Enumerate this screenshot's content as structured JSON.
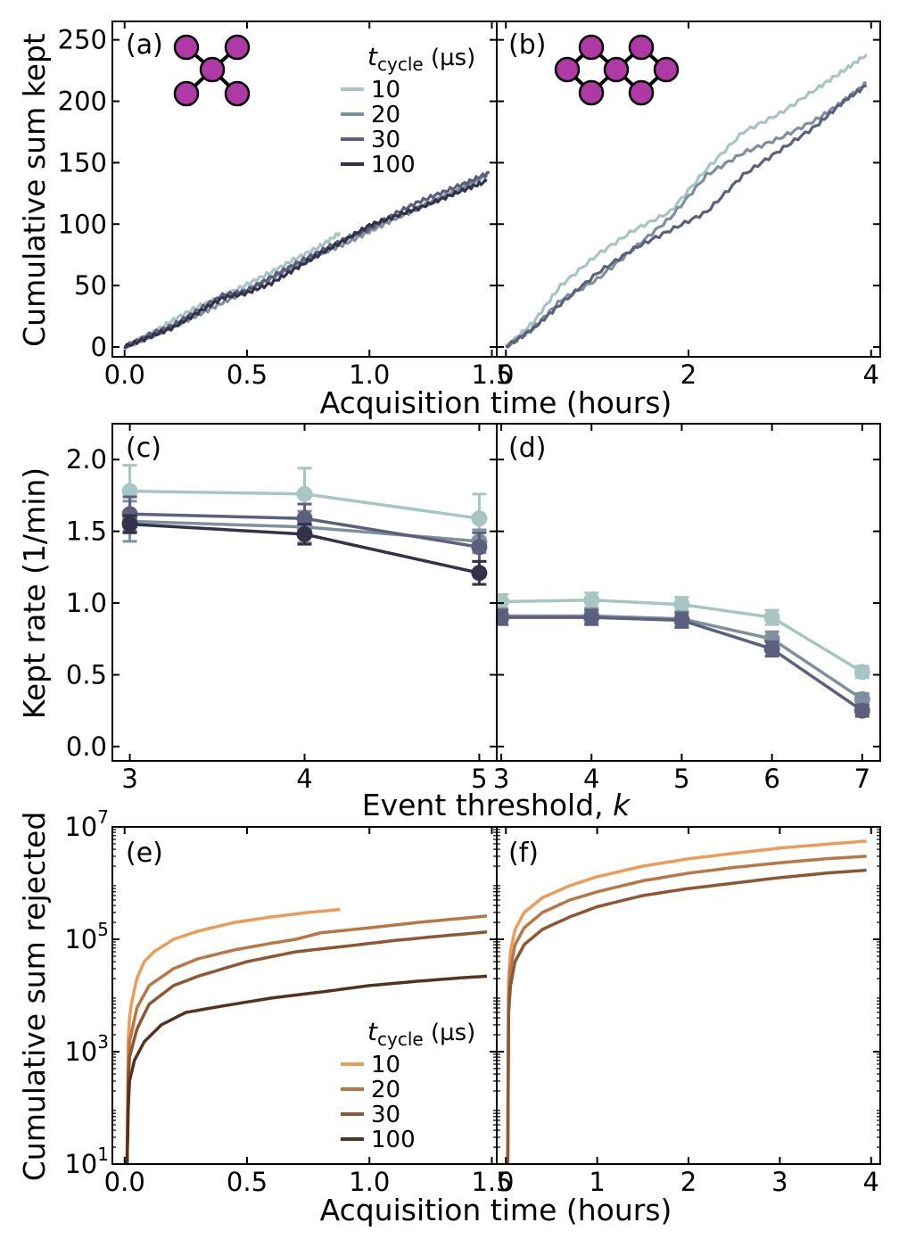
{
  "colors": {
    "kept": [
      "#a7c5c3",
      "#7e8f9d",
      "#5c5f7e",
      "#33324a"
    ],
    "rejected": [
      "#ec9b5a",
      "#b97647",
      "#8e5633",
      "#55321f"
    ],
    "qubit": "#b03aa5"
  },
  "axis_labels": {
    "row1_x": "Acquisition time (hours)",
    "row2_x": "Event threshold, k",
    "row3_x": "Acquisition time (hours)",
    "row1_y": "Cumulative sum kept",
    "row2_y": "Kept rate (1/min)",
    "row3_y": "Cumulative sum rejected"
  },
  "legend": {
    "title_main": "t",
    "title_sub": "cycle",
    "title_unit": "(µs)",
    "entries": [
      "10",
      "20",
      "30",
      "100"
    ]
  },
  "chart_data": [
    {
      "panel": "a",
      "type": "line",
      "label": "(a)",
      "xlabel": "Acquisition time (hours)",
      "ylabel": "Cumulative sum kept",
      "xlim": [
        -0.05,
        1.52
      ],
      "ylim": [
        -8,
        265
      ],
      "xticks": [
        0.0,
        0.5,
        1.0,
        1.5
      ],
      "xticklabels": [
        "0.0",
        "0.5",
        "1.0",
        "1.5"
      ],
      "yticks": [
        0,
        50,
        100,
        150,
        200,
        250
      ],
      "yticklabels": [
        "0",
        "50",
        "100",
        "150",
        "200",
        "250"
      ],
      "series": [
        {
          "name": "10",
          "x": [
            0,
            0.1,
            0.2,
            0.3,
            0.4,
            0.5,
            0.6,
            0.7,
            0.8,
            0.88
          ],
          "y": [
            0,
            10,
            22,
            33,
            41,
            51,
            61,
            72,
            82,
            93
          ]
        },
        {
          "name": "20",
          "x": [
            0,
            0.1,
            0.2,
            0.3,
            0.4,
            0.5,
            0.6,
            0.7,
            0.8,
            0.9,
            1.0,
            1.1,
            1.2,
            1.3,
            1.4,
            1.48
          ],
          "y": [
            0,
            8,
            17,
            26,
            36,
            46,
            56,
            66,
            76,
            84,
            94,
            104,
            113,
            122,
            131,
            140
          ]
        },
        {
          "name": "30",
          "x": [
            0,
            0.1,
            0.2,
            0.3,
            0.4,
            0.5,
            0.6,
            0.7,
            0.8,
            0.9,
            1.0,
            1.1,
            1.2,
            1.3,
            1.4,
            1.49
          ],
          "y": [
            0,
            10,
            18,
            30,
            42,
            46,
            57,
            68,
            78,
            88,
            96,
            108,
            118,
            126,
            134,
            142
          ]
        },
        {
          "name": "100",
          "x": [
            0,
            0.1,
            0.2,
            0.3,
            0.4,
            0.5,
            0.6,
            0.7,
            0.8,
            0.9,
            1.0,
            1.1,
            1.2,
            1.3,
            1.4,
            1.48
          ],
          "y": [
            0,
            8,
            16,
            28,
            40,
            44,
            52,
            64,
            76,
            87,
            99,
            106,
            113,
            121,
            129,
            135
          ]
        }
      ]
    },
    {
      "panel": "b",
      "type": "line",
      "label": "(b)",
      "xlabel": "Acquisition time (hours)",
      "ylabel": "",
      "xlim": [
        -0.1,
        4.1
      ],
      "ylim": [
        -8,
        265
      ],
      "xticks": [
        0,
        2,
        4
      ],
      "xticklabels": [
        "0",
        "2",
        "4"
      ],
      "yticks": [
        0,
        50,
        100,
        150,
        200,
        250
      ],
      "yticklabels": [],
      "series": [
        {
          "name": "10",
          "x": [
            0,
            0.3,
            0.6,
            1.0,
            1.4,
            1.8,
            2.2,
            2.6,
            3.0,
            3.4,
            3.7,
            3.95
          ],
          "y": [
            0,
            20,
            50,
            75,
            95,
            110,
            145,
            175,
            190,
            210,
            225,
            238
          ]
        },
        {
          "name": "20",
          "x": [
            0,
            0.3,
            0.6,
            1.0,
            1.4,
            1.8,
            2.2,
            2.6,
            3.0,
            3.4,
            3.7,
            3.95
          ],
          "y": [
            0,
            15,
            38,
            55,
            80,
            105,
            140,
            158,
            170,
            185,
            200,
            215
          ]
        },
        {
          "name": "30",
          "x": [
            0,
            0.3,
            0.6,
            1.0,
            1.4,
            1.8,
            2.2,
            2.6,
            3.0,
            3.4,
            3.7,
            3.95
          ],
          "y": [
            0,
            15,
            35,
            60,
            80,
            95,
            110,
            140,
            160,
            180,
            200,
            213
          ]
        }
      ]
    },
    {
      "panel": "c",
      "type": "line",
      "label": "(c)",
      "xlabel": "Event threshold, k",
      "ylabel": "Kept rate (1/min)",
      "xlim": [
        2.9,
        5.1
      ],
      "ylim": [
        -0.1,
        2.25
      ],
      "xticks": [
        3,
        4,
        5
      ],
      "xticklabels": [
        "3",
        "4",
        "5"
      ],
      "yticks": [
        0.0,
        0.5,
        1.0,
        1.5,
        2.0
      ],
      "yticklabels": [
        "0.0",
        "0.5",
        "1.0",
        "1.5",
        "2.0"
      ],
      "series": [
        {
          "name": "10",
          "x": [
            3,
            4,
            5
          ],
          "y": [
            1.78,
            1.76,
            1.59
          ],
          "err": [
            0.18,
            0.18,
            0.17
          ]
        },
        {
          "name": "20",
          "x": [
            3,
            4,
            5
          ],
          "y": [
            1.57,
            1.53,
            1.43
          ],
          "err": [
            0.14,
            0.11,
            0.08
          ]
        },
        {
          "name": "30",
          "x": [
            3,
            4,
            5
          ],
          "y": [
            1.62,
            1.59,
            1.39
          ],
          "err": [
            0.12,
            0.1,
            0.1
          ]
        },
        {
          "name": "100",
          "x": [
            3,
            4,
            5
          ],
          "y": [
            1.55,
            1.48,
            1.21
          ],
          "err": [
            0.06,
            0.07,
            0.08
          ]
        }
      ]
    },
    {
      "panel": "d",
      "type": "line",
      "label": "(d)",
      "xlabel": "Event threshold, k",
      "ylabel": "",
      "xlim": [
        2.95,
        7.2
      ],
      "ylim": [
        -0.1,
        2.25
      ],
      "xticks": [
        3,
        4,
        5,
        6,
        7
      ],
      "xticklabels": [
        "3",
        "4",
        "5",
        "6",
        "7"
      ],
      "yticks": [
        0.0,
        0.5,
        1.0,
        1.5,
        2.0
      ],
      "yticklabels": [],
      "series": [
        {
          "name": "10",
          "x": [
            3,
            4,
            5,
            6,
            7
          ],
          "y": [
            1.01,
            1.02,
            0.99,
            0.9,
            0.52
          ],
          "err": [
            0.05,
            0.05,
            0.05,
            0.05,
            0.04
          ]
        },
        {
          "name": "20",
          "x": [
            3,
            4,
            5,
            6,
            7
          ],
          "y": [
            0.91,
            0.91,
            0.89,
            0.75,
            0.33
          ],
          "err": [
            0.05,
            0.05,
            0.05,
            0.05,
            0.04
          ]
        },
        {
          "name": "30",
          "x": [
            3,
            4,
            5,
            6,
            7
          ],
          "y": [
            0.9,
            0.9,
            0.88,
            0.68,
            0.25
          ],
          "err": [
            0.05,
            0.05,
            0.05,
            0.05,
            0.04
          ]
        }
      ]
    },
    {
      "panel": "e",
      "type": "line",
      "yscale": "log",
      "label": "(e)",
      "xlabel": "Acquisition time (hours)",
      "ylabel": "Cumulative sum rejected",
      "xlim": [
        -0.05,
        1.52
      ],
      "ylim": [
        10,
        10000000
      ],
      "xticks": [
        0.0,
        0.5,
        1.0,
        1.5
      ],
      "xticklabels": [
        "0.0",
        "0.5",
        "1.0",
        "1.5"
      ],
      "yticks": [
        10,
        1000,
        100000,
        10000000
      ],
      "yticklabels": [
        "10",
        "10",
        "10",
        "10"
      ],
      "ytick_exponents": [
        "1",
        "3",
        "5",
        "7"
      ],
      "series": [
        {
          "name": "10",
          "x": [
            0.01,
            0.015,
            0.02,
            0.03,
            0.05,
            0.08,
            0.12,
            0.2,
            0.3,
            0.45,
            0.6,
            0.75,
            0.88
          ],
          "y": [
            10,
            1500,
            4000,
            8000,
            20000,
            40000,
            60000,
            100000,
            140000,
            200000,
            250000,
            300000,
            340000
          ]
        },
        {
          "name": "20",
          "x": [
            0.01,
            0.015,
            0.02,
            0.05,
            0.1,
            0.2,
            0.3,
            0.45,
            0.6,
            0.7,
            0.8,
            1.0,
            1.2,
            1.35,
            1.48
          ],
          "y": [
            10,
            500,
            1500,
            6000,
            15000,
            30000,
            45000,
            65000,
            85000,
            100000,
            130000,
            160000,
            200000,
            230000,
            260000
          ]
        },
        {
          "name": "30",
          "x": [
            0.01,
            0.015,
            0.02,
            0.05,
            0.1,
            0.2,
            0.3,
            0.5,
            0.7,
            0.9,
            1.1,
            1.3,
            1.48
          ],
          "y": [
            10,
            300,
            800,
            2500,
            7000,
            15000,
            22000,
            40000,
            60000,
            75000,
            95000,
            115000,
            135000
          ]
        },
        {
          "name": "100",
          "x": [
            0.01,
            0.015,
            0.02,
            0.04,
            0.08,
            0.15,
            0.25,
            0.4,
            0.6,
            0.8,
            1.0,
            1.2,
            1.4,
            1.48
          ],
          "y": [
            10,
            100,
            300,
            700,
            1500,
            3000,
            5000,
            6500,
            9000,
            11500,
            15000,
            18000,
            21000,
            22000
          ]
        }
      ]
    },
    {
      "panel": "f",
      "type": "line",
      "yscale": "log",
      "label": "(f)",
      "xlabel": "Acquisition time (hours)",
      "ylabel": "",
      "xlim": [
        -0.1,
        4.1
      ],
      "ylim": [
        10,
        10000000
      ],
      "xticks": [
        0,
        1,
        2,
        3,
        4
      ],
      "xticklabels": [
        "0",
        "1",
        "2",
        "3",
        "4"
      ],
      "yticks": [
        10,
        1000,
        100000,
        10000000
      ],
      "yticklabels": [],
      "series": [
        {
          "name": "10",
          "x": [
            0.02,
            0.03,
            0.05,
            0.1,
            0.2,
            0.4,
            0.7,
            1.0,
            1.5,
            2.0,
            2.5,
            3.0,
            3.5,
            3.95
          ],
          "y": [
            10,
            20000,
            60000,
            150000,
            300000,
            550000,
            900000,
            1300000,
            2000000,
            2700000,
            3400000,
            4200000,
            4900000,
            5600000
          ]
        },
        {
          "name": "20",
          "x": [
            0.02,
            0.03,
            0.05,
            0.1,
            0.2,
            0.4,
            0.7,
            1.0,
            1.5,
            2.0,
            2.5,
            3.0,
            3.5,
            3.95
          ],
          "y": [
            10,
            10000,
            30000,
            80000,
            160000,
            300000,
            500000,
            700000,
            1100000,
            1500000,
            1900000,
            2300000,
            2700000,
            3000000
          ]
        },
        {
          "name": "30",
          "x": [
            0.02,
            0.03,
            0.05,
            0.1,
            0.2,
            0.4,
            0.7,
            1.0,
            1.5,
            2.0,
            2.5,
            3.0,
            3.5,
            3.95
          ],
          "y": [
            10,
            5000,
            15000,
            40000,
            80000,
            150000,
            250000,
            380000,
            600000,
            800000,
            1000000,
            1250000,
            1500000,
            1700000
          ]
        }
      ]
    }
  ]
}
